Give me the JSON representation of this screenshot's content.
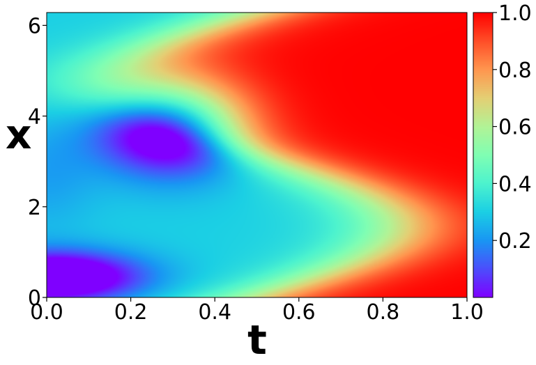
{
  "chart_data": {
    "type": "heatmap",
    "xlabel": "t",
    "ylabel": "x",
    "xlim": [
      0.0,
      1.0
    ],
    "ylim": [
      0,
      6.283
    ],
    "x_ticks": [
      "0.0",
      "0.2",
      "0.4",
      "0.6",
      "0.8",
      "1.0"
    ],
    "x_tick_values": [
      0.0,
      0.2,
      0.4,
      0.6,
      0.8,
      1.0
    ],
    "y_ticks": [
      "0",
      "2",
      "4",
      "6"
    ],
    "y_tick_values": [
      0,
      2,
      4,
      6
    ],
    "colormap": "rainbow",
    "colorbar": {
      "range": [
        0.0,
        1.0
      ],
      "ticks": [
        "0.2",
        "0.4",
        "0.6",
        "0.8",
        "1.0"
      ],
      "tick_values": [
        0.2,
        0.4,
        0.6,
        0.8,
        1.0
      ]
    },
    "colormap_stops": [
      {
        "value": 0.0,
        "color": "#7f00ff"
      },
      {
        "value": 0.1,
        "color": "#4c4efc"
      },
      {
        "value": 0.2,
        "color": "#1996f3"
      },
      {
        "value": 0.3,
        "color": "#1bcfe4"
      },
      {
        "value": 0.4,
        "color": "#4df3ce"
      },
      {
        "value": 0.5,
        "color": "#80feb3"
      },
      {
        "value": 0.6,
        "color": "#b2f396"
      },
      {
        "value": 0.7,
        "color": "#e4cf74"
      },
      {
        "value": 0.8,
        "color": "#ff964f"
      },
      {
        "value": 0.9,
        "color": "#ff4e28"
      },
      {
        "value": 1.0,
        "color": "#ff0000"
      }
    ]
  }
}
